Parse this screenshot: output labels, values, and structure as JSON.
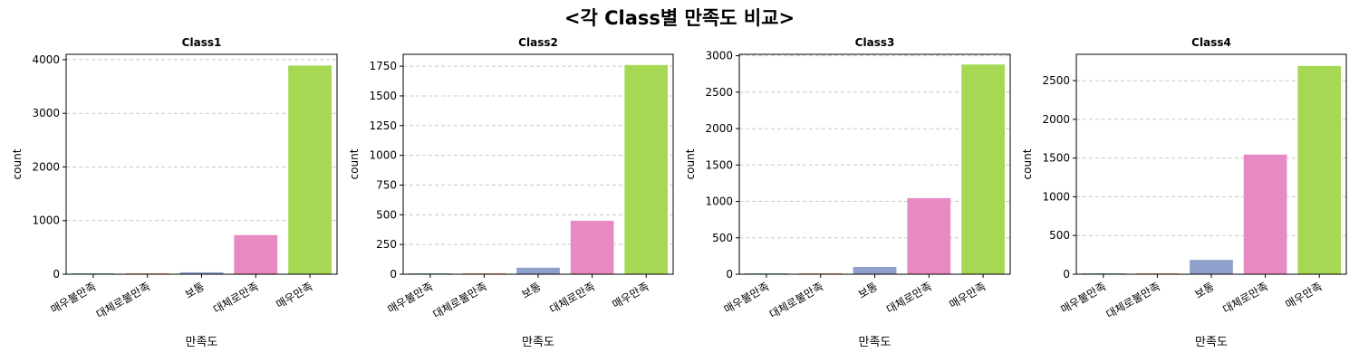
{
  "figure": {
    "title": "<각 Class별 만족도 비교>"
  },
  "colors": {
    "매우불만족": "#66c2a5",
    "대체로불만족": "#fc8d62",
    "보통": "#8da0cb",
    "대체로만족": "#e78ac3",
    "매우만족": "#a6d854",
    "grid": "#c8c8c8",
    "axis": "#000000"
  },
  "chart_data": [
    {
      "type": "bar",
      "title": "Class1",
      "xlabel": "만족도",
      "ylabel": "count",
      "categories": [
        "매우불만족",
        "대체로불만족",
        "보통",
        "대체로만족",
        "매우만족"
      ],
      "values": [
        10,
        15,
        35,
        730,
        3890
      ],
      "ylim": [
        0,
        4100
      ],
      "yticks": [
        0,
        1000,
        2000,
        3000,
        4000
      ],
      "grid": "y-dashed",
      "legend": "none"
    },
    {
      "type": "bar",
      "title": "Class2",
      "xlabel": "만족도",
      "ylabel": "count",
      "categories": [
        "매우불만족",
        "대체로불만족",
        "보통",
        "대체로만족",
        "매우만족"
      ],
      "values": [
        2,
        5,
        55,
        450,
        1760
      ],
      "ylim": [
        0,
        1850
      ],
      "yticks": [
        0,
        250,
        500,
        750,
        1000,
        1250,
        1500,
        1750
      ],
      "grid": "y-dashed",
      "legend": "none"
    },
    {
      "type": "bar",
      "title": "Class3",
      "xlabel": "만족도",
      "ylabel": "count",
      "categories": [
        "매우불만족",
        "대체로불만족",
        "보통",
        "대체로만족",
        "매우만족"
      ],
      "values": [
        3,
        8,
        100,
        1045,
        2880
      ],
      "ylim": [
        0,
        3020
      ],
      "yticks": [
        0,
        500,
        1000,
        1500,
        2000,
        2500,
        3000
      ],
      "grid": "y-dashed",
      "legend": "none"
    },
    {
      "type": "bar",
      "title": "Class4",
      "xlabel": "만족도",
      "ylabel": "count",
      "categories": [
        "매우불만족",
        "대체로불만족",
        "보통",
        "대체로만족",
        "매우만족"
      ],
      "values": [
        8,
        10,
        185,
        1545,
        2690
      ],
      "ylim": [
        0,
        2840
      ],
      "yticks": [
        0,
        500,
        1000,
        1500,
        2000,
        2500
      ],
      "grid": "y-dashed",
      "legend": "none"
    }
  ]
}
